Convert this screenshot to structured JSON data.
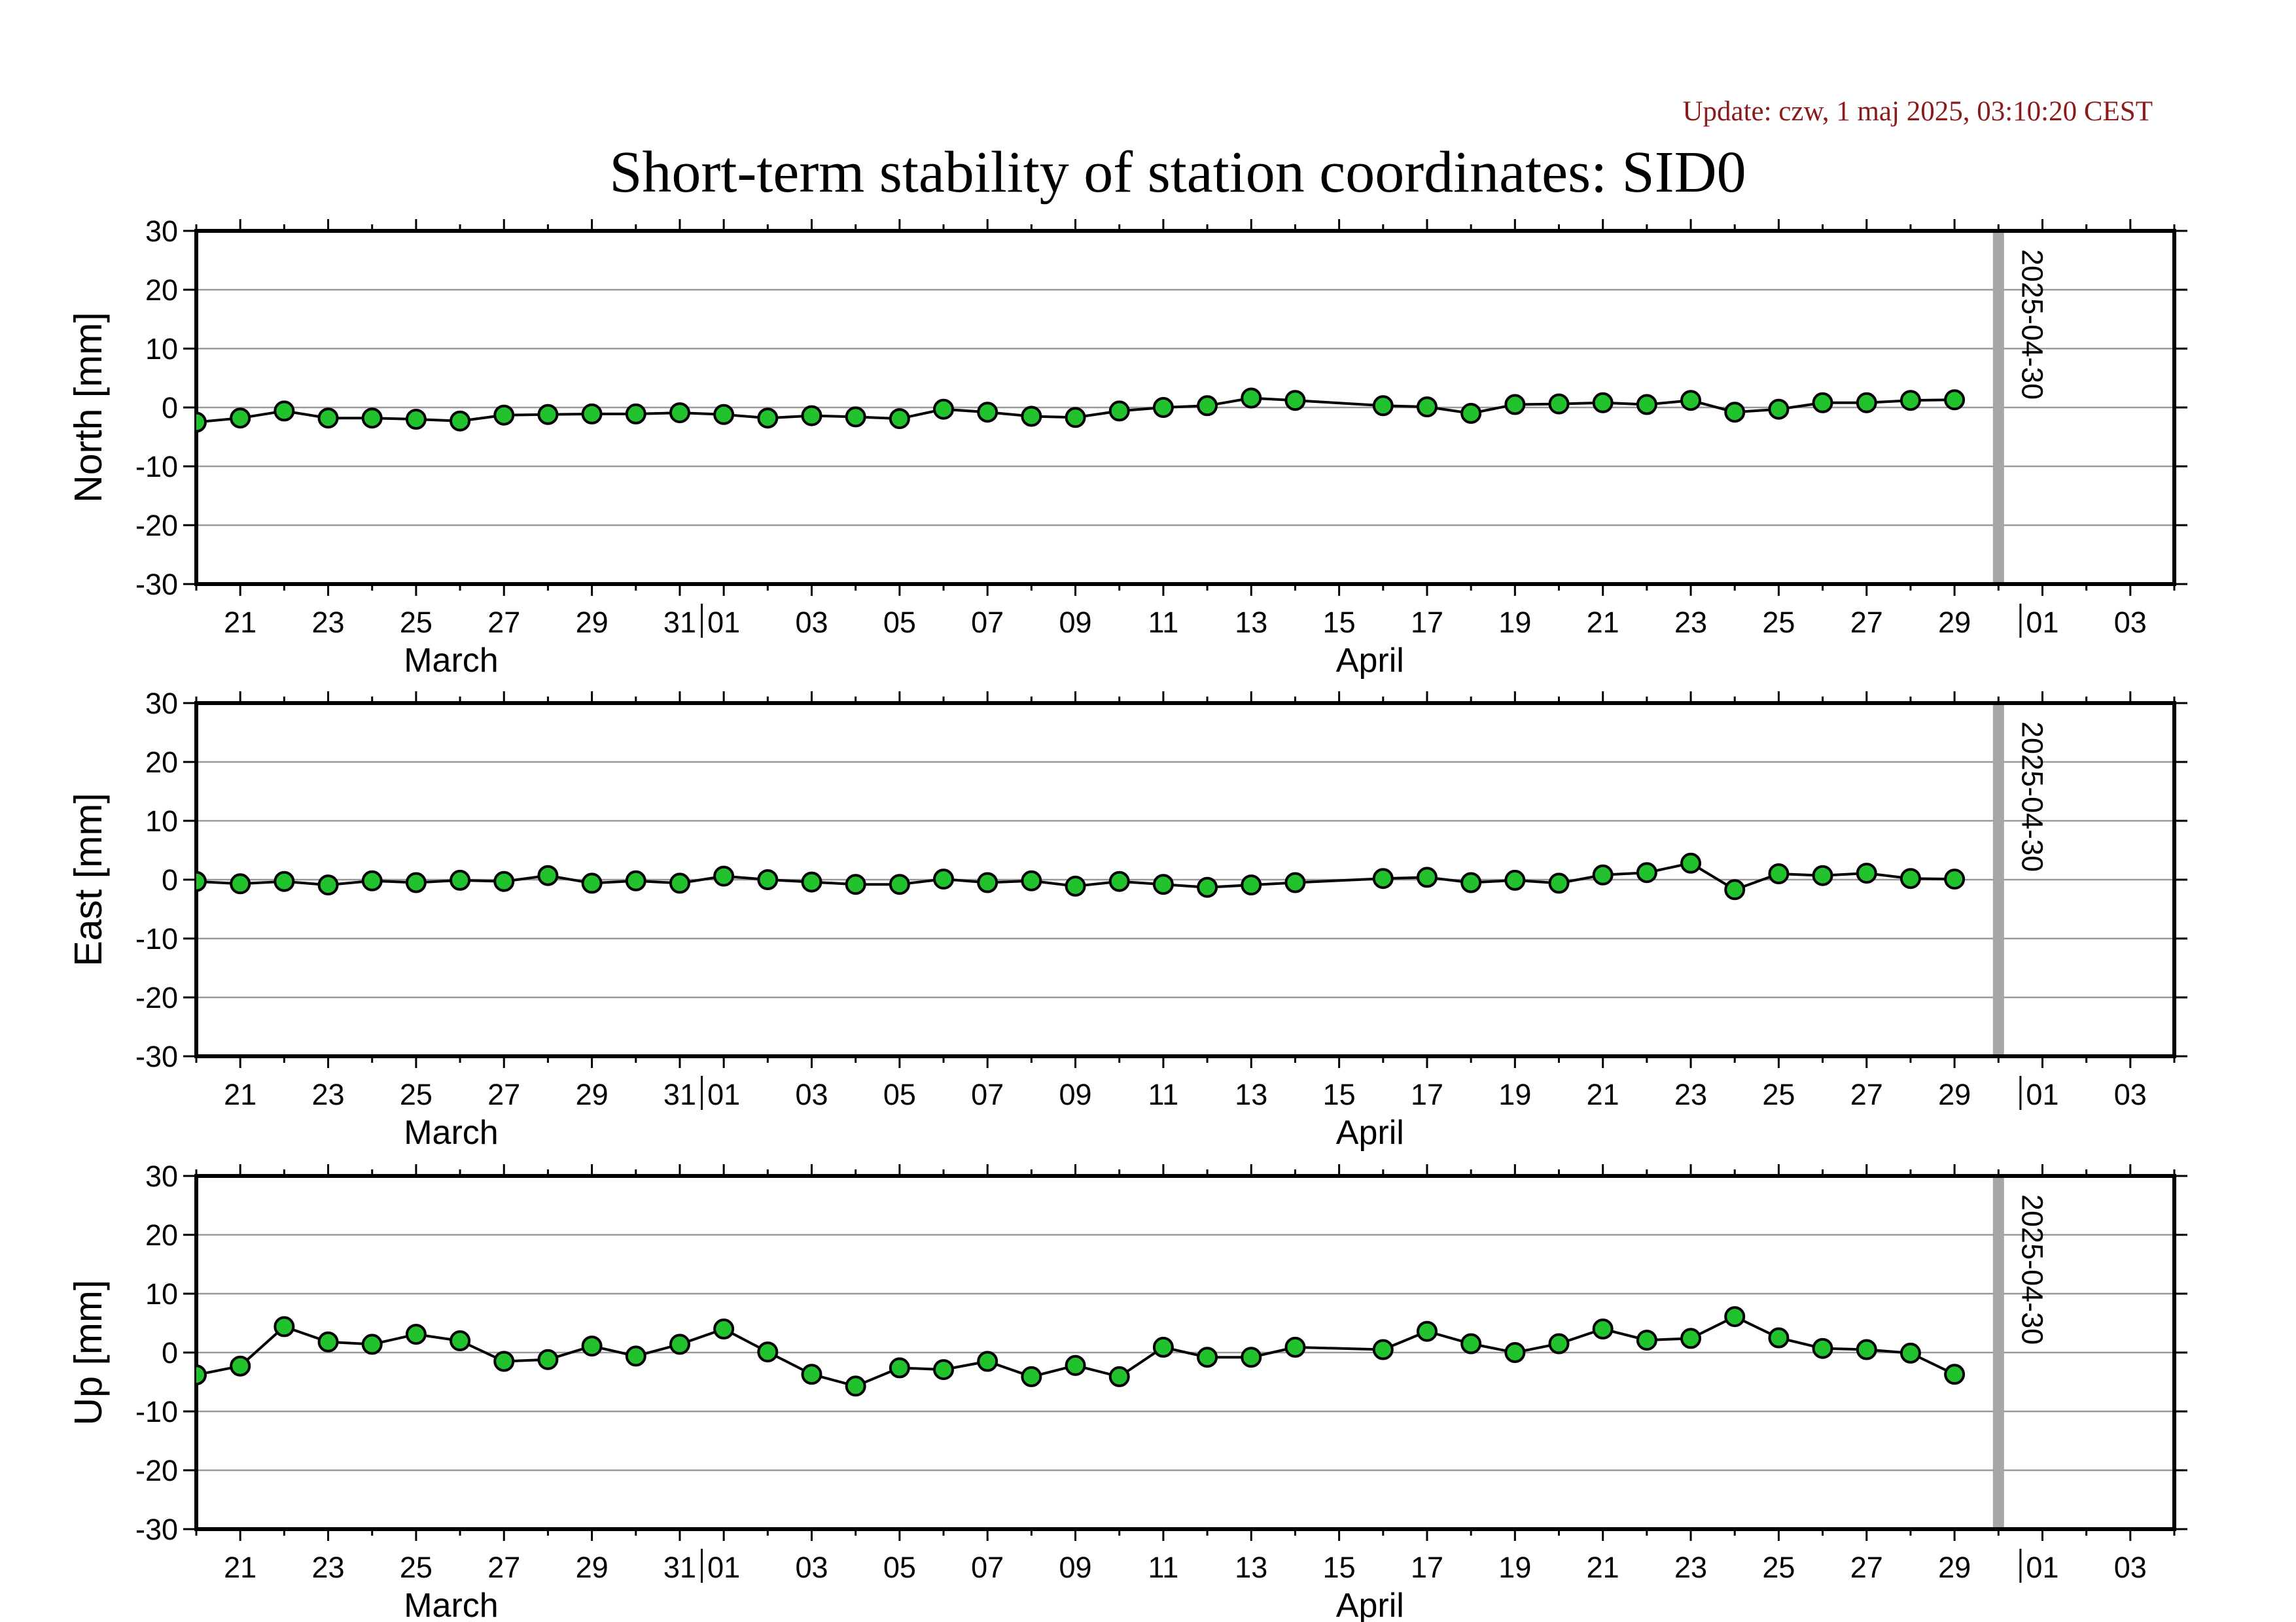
{
  "update": "Update: czw, 1 maj 2025, 03:10:20 CEST",
  "title": "Short-term stability of station coordinates: SID0",
  "colors": {
    "marker": "#22c22e",
    "line": "#000000",
    "grid": "#999999",
    "ref_line": "#a6a6a6",
    "update": "#8b1a1a"
  },
  "chart_data": [
    {
      "type": "line",
      "ylabel": "North [mm]",
      "ylim": [
        -30,
        30
      ],
      "yticks": [
        30,
        20,
        10,
        0,
        -10,
        -20,
        -30
      ],
      "xlim": [
        "2025-03-20",
        "2025-05-04"
      ],
      "x_ticks": [
        "21",
        "23",
        "25",
        "27",
        "29",
        "31",
        "01",
        "03",
        "05",
        "07",
        "09",
        "11",
        "13",
        "15",
        "17",
        "19",
        "21",
        "23",
        "25",
        "27",
        "29",
        "01",
        "03"
      ],
      "months": [
        "March",
        "April"
      ],
      "marker_label": "2025-04-30",
      "grid": true,
      "x": [
        "2025-03-20",
        "2025-03-21",
        "2025-03-22",
        "2025-03-23",
        "2025-03-24",
        "2025-03-25",
        "2025-03-26",
        "2025-03-27",
        "2025-03-28",
        "2025-03-29",
        "2025-03-30",
        "2025-03-31",
        "2025-04-01",
        "2025-04-02",
        "2025-04-03",
        "2025-04-04",
        "2025-04-05",
        "2025-04-06",
        "2025-04-07",
        "2025-04-08",
        "2025-04-09",
        "2025-04-10",
        "2025-04-11",
        "2025-04-12",
        "2025-04-13",
        "2025-04-14",
        "2025-04-16",
        "2025-04-17",
        "2025-04-18",
        "2025-04-19",
        "2025-04-20",
        "2025-04-21",
        "2025-04-22",
        "2025-04-23",
        "2025-04-24",
        "2025-04-25",
        "2025-04-26",
        "2025-04-27",
        "2025-04-28",
        "2025-04-29"
      ],
      "y": [
        -2.5,
        -1.8,
        -0.6,
        -1.8,
        -1.8,
        -2.0,
        -2.3,
        -1.3,
        -1.2,
        -1.1,
        -1.1,
        -0.9,
        -1.2,
        -1.8,
        -1.4,
        -1.6,
        -1.9,
        -0.3,
        -0.8,
        -1.5,
        -1.7,
        -0.6,
        0.0,
        0.3,
        1.6,
        1.2,
        0.3,
        0.1,
        -1.0,
        0.5,
        0.6,
        0.8,
        0.5,
        1.2,
        -0.8,
        -0.3,
        0.8,
        0.8,
        1.2,
        1.3
      ]
    },
    {
      "type": "line",
      "ylabel": "East [mm]",
      "ylim": [
        -30,
        30
      ],
      "yticks": [
        30,
        20,
        10,
        0,
        -10,
        -20,
        -30
      ],
      "xlim": [
        "2025-03-20",
        "2025-05-04"
      ],
      "x_ticks": [
        "21",
        "23",
        "25",
        "27",
        "29",
        "31",
        "01",
        "03",
        "05",
        "07",
        "09",
        "11",
        "13",
        "15",
        "17",
        "19",
        "21",
        "23",
        "25",
        "27",
        "29",
        "01",
        "03"
      ],
      "months": [
        "March",
        "April"
      ],
      "marker_label": "2025-04-30",
      "grid": true,
      "x": [
        "2025-03-20",
        "2025-03-21",
        "2025-03-22",
        "2025-03-23",
        "2025-03-24",
        "2025-03-25",
        "2025-03-26",
        "2025-03-27",
        "2025-03-28",
        "2025-03-29",
        "2025-03-30",
        "2025-03-31",
        "2025-04-01",
        "2025-04-02",
        "2025-04-03",
        "2025-04-04",
        "2025-04-05",
        "2025-04-06",
        "2025-04-07",
        "2025-04-08",
        "2025-04-09",
        "2025-04-10",
        "2025-04-11",
        "2025-04-12",
        "2025-04-13",
        "2025-04-14",
        "2025-04-16",
        "2025-04-17",
        "2025-04-18",
        "2025-04-19",
        "2025-04-20",
        "2025-04-21",
        "2025-04-22",
        "2025-04-23",
        "2025-04-24",
        "2025-04-25",
        "2025-04-26",
        "2025-04-27",
        "2025-04-28",
        "2025-04-29"
      ],
      "y": [
        -0.3,
        -0.7,
        -0.3,
        -0.9,
        -0.2,
        -0.5,
        -0.1,
        -0.3,
        0.7,
        -0.6,
        -0.2,
        -0.6,
        0.6,
        0.0,
        -0.4,
        -0.8,
        -0.8,
        0.1,
        -0.5,
        -0.2,
        -1.1,
        -0.3,
        -0.8,
        -1.3,
        -0.9,
        -0.5,
        0.2,
        0.4,
        -0.5,
        -0.1,
        -0.6,
        0.8,
        1.2,
        2.8,
        -1.7,
        1.0,
        0.7,
        1.1,
        0.2,
        0.1
      ]
    },
    {
      "type": "line",
      "ylabel": "Up [mm]",
      "ylim": [
        -30,
        30
      ],
      "yticks": [
        30,
        20,
        10,
        0,
        -10,
        -20,
        -30
      ],
      "xlim": [
        "2025-03-20",
        "2025-05-04"
      ],
      "x_ticks": [
        "21",
        "23",
        "25",
        "27",
        "29",
        "31",
        "01",
        "03",
        "05",
        "07",
        "09",
        "11",
        "13",
        "15",
        "17",
        "19",
        "21",
        "23",
        "25",
        "27",
        "29",
        "01",
        "03"
      ],
      "months": [
        "March",
        "April"
      ],
      "marker_label": "2025-04-30",
      "grid": true,
      "x": [
        "2025-03-20",
        "2025-03-21",
        "2025-03-22",
        "2025-03-23",
        "2025-03-24",
        "2025-03-25",
        "2025-03-26",
        "2025-03-27",
        "2025-03-28",
        "2025-03-29",
        "2025-03-30",
        "2025-03-31",
        "2025-04-01",
        "2025-04-02",
        "2025-04-03",
        "2025-04-04",
        "2025-04-05",
        "2025-04-06",
        "2025-04-07",
        "2025-04-08",
        "2025-04-09",
        "2025-04-10",
        "2025-04-11",
        "2025-04-12",
        "2025-04-13",
        "2025-04-14",
        "2025-04-16",
        "2025-04-17",
        "2025-04-18",
        "2025-04-19",
        "2025-04-20",
        "2025-04-21",
        "2025-04-22",
        "2025-04-23",
        "2025-04-24",
        "2025-04-25",
        "2025-04-26",
        "2025-04-27",
        "2025-04-28",
        "2025-04-29"
      ],
      "y": [
        -3.8,
        -2.3,
        4.4,
        1.8,
        1.4,
        3.1,
        2.0,
        -1.5,
        -1.2,
        1.1,
        -0.6,
        1.4,
        4.0,
        0.1,
        -3.7,
        -5.7,
        -2.6,
        -2.9,
        -1.5,
        -4.1,
        -2.2,
        -4.1,
        0.9,
        -0.8,
        -0.8,
        0.9,
        0.5,
        3.6,
        1.5,
        0.0,
        1.5,
        4.0,
        2.1,
        2.4,
        6.1,
        2.5,
        0.7,
        0.5,
        -0.1,
        -3.7
      ]
    }
  ]
}
